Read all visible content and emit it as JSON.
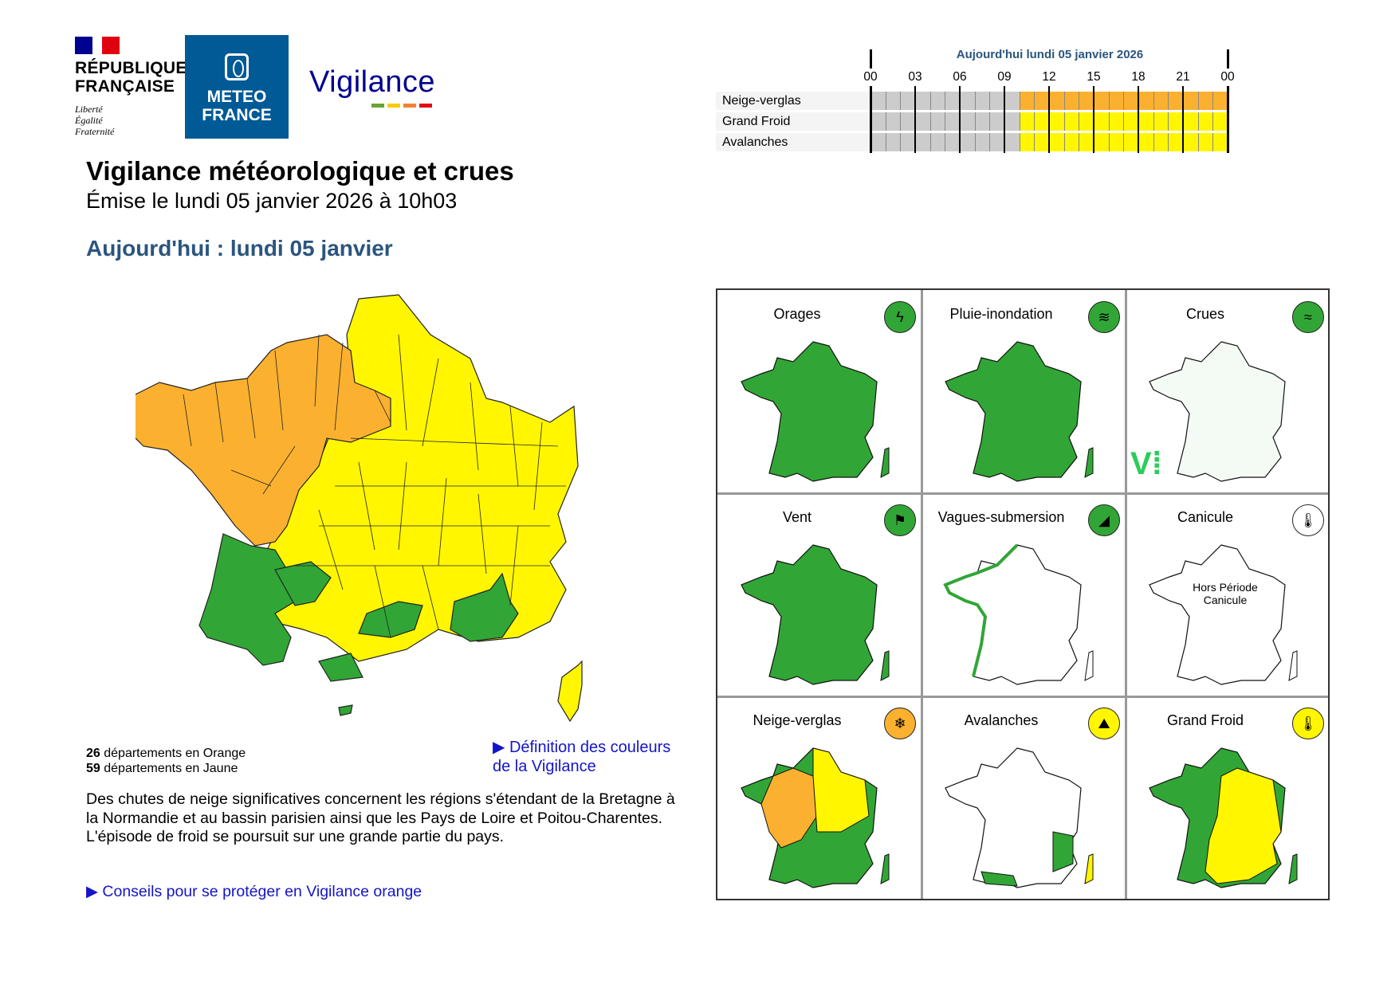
{
  "header": {
    "republique": {
      "name": "RÉPUBLIQUE\nFRANÇAISE",
      "motto": "Liberté\nÉgalité\nFraternité"
    },
    "meteo_france": {
      "name": "METEO\nFRANCE"
    },
    "vigilance_logo": {
      "word": "Vigilance",
      "bar_colors": [
        "#6aa437",
        "#fbcb00",
        "#f48132",
        "#e30613"
      ]
    }
  },
  "title": "Vigilance météorologique et crues",
  "issued": "Émise le lundi 05 janvier 2026 à 10h03",
  "today_heading": "Aujourd'hui : lundi 05 janvier",
  "timeline": {
    "title": "Aujourd'hui lundi 05 janvier 2026",
    "hours": [
      "00",
      "03",
      "06",
      "09",
      "12",
      "15",
      "18",
      "21",
      "00"
    ],
    "rows": [
      {
        "label": "Neige-verglas",
        "from_hour": 10,
        "color": "#fbb12f"
      },
      {
        "label": "Grand Froid",
        "from_hour": 10,
        "color": "#fff600"
      },
      {
        "label": "Avalanches",
        "from_hour": 10,
        "color": "#fff600"
      }
    ],
    "inactive_color": "#cccccc"
  },
  "summary": {
    "orange_count": "26",
    "orange_label": " départements en Orange",
    "yellow_count": "59",
    "yellow_label": " départements en Jaune"
  },
  "links": {
    "definition": "▶ Définition des couleurs de la Vigilance",
    "advice": "▶ Conseils pour se protéger en Vigilance orange"
  },
  "description": "Des chutes de neige significatives concernent les régions s'étendant de la Bretagne à la Normandie et au bassin parisien ainsi que les Pays de Loire et Poitou-Charentes.\nL'épisode de froid se poursuit sur une grande partie du pays.",
  "colors": {
    "green": "#31a636",
    "yellow": "#fff600",
    "orange": "#fbb12f",
    "white": "#ffffff"
  },
  "phenomena": [
    {
      "label": "Orages",
      "level": "green",
      "icon": "lightning-icon",
      "glyph": "ϟ"
    },
    {
      "label": "Pluie-inondation",
      "level": "green",
      "icon": "rain-flood-icon",
      "glyph": "≋"
    },
    {
      "label": "Crues",
      "level": "green",
      "icon": "flood-waves-icon",
      "glyph": "≈"
    },
    {
      "label": "Vent",
      "level": "green",
      "icon": "windsock-icon",
      "glyph": "⚑"
    },
    {
      "label": "Vagues-submersion",
      "level": "green",
      "icon": "wave-submersion-icon",
      "glyph": "◢"
    },
    {
      "label": "Canicule",
      "level": "none",
      "icon": "thermometer-icon",
      "glyph": "🌡",
      "note": "Hors Période Canicule"
    },
    {
      "label": "Neige-verglas",
      "level": "orange",
      "icon": "snow-ice-icon",
      "glyph": "❄"
    },
    {
      "label": "Avalanches",
      "level": "yellow",
      "icon": "avalanche-icon",
      "glyph": "⛰"
    },
    {
      "label": "Grand Froid",
      "level": "yellow",
      "icon": "cold-thermometer-icon",
      "glyph": "🌡"
    }
  ]
}
